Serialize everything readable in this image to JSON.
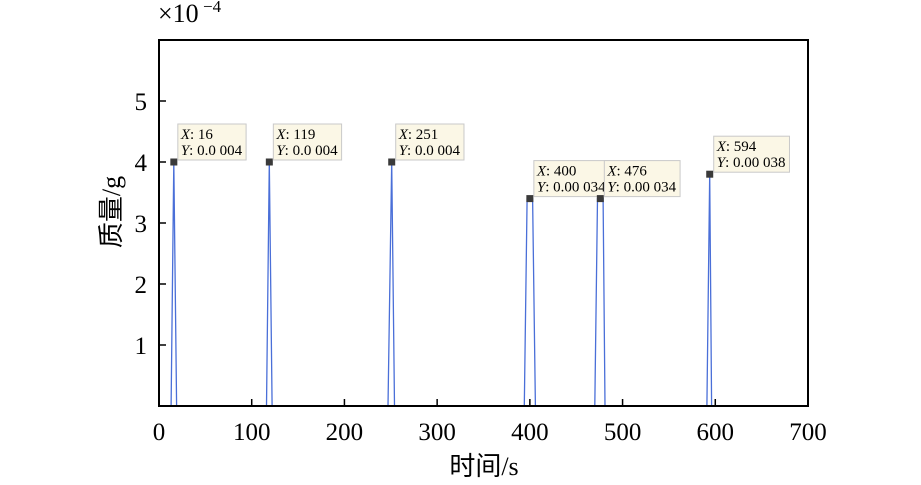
{
  "chart_data": {
    "type": "line",
    "xlabel": "时间/s",
    "ylabel": "质量/g",
    "y_exponent_label": "×10",
    "y_exponent_power": "−4",
    "xlim": [
      0,
      700
    ],
    "ylim": [
      0,
      0.0006
    ],
    "x_ticks": [
      0,
      100,
      200,
      300,
      400,
      500,
      600,
      700
    ],
    "x_tick_labels": [
      "0",
      "100",
      "200",
      "300",
      "400",
      "500",
      "600",
      "700"
    ],
    "y_ticks": [
      0.0001,
      0.0002,
      0.0003,
      0.0004,
      0.0005
    ],
    "y_tick_labels": [
      "1",
      "2",
      "3",
      "4",
      "5"
    ],
    "grid": false,
    "line_color": "#4a6fd8",
    "series": [
      {
        "x": [
          0,
          13,
          16,
          16,
          19,
          22,
          116,
          119,
          119,
          122,
          247,
          251,
          251,
          254,
          394,
          397,
          400,
          403,
          406,
          470,
          473,
          476,
          479,
          481,
          591,
          594,
          594,
          596,
          700
        ],
        "y": [
          0,
          0,
          0.0004,
          0.0004,
          0,
          0,
          0,
          0.0004,
          0.0004,
          0,
          0,
          0.0004,
          0.0004,
          0,
          0,
          0.00034,
          0.00034,
          0.00034,
          0,
          0,
          0.00034,
          0.00034,
          0.00034,
          0,
          0,
          0.00038,
          0.00038,
          0,
          0
        ]
      }
    ],
    "datatips": [
      {
        "x_key": "X",
        "y_key": "Y",
        "x": 16,
        "y": 0.0004,
        "x_text": ": 16",
        "y_text": ": 0.0 004"
      },
      {
        "x_key": "X",
        "y_key": "Y",
        "x": 119,
        "y": 0.0004,
        "x_text": ": 119",
        "y_text": ": 0.0 004"
      },
      {
        "x_key": "X",
        "y_key": "Y",
        "x": 251,
        "y": 0.0004,
        "x_text": ": 251",
        "y_text": ": 0.0 004"
      },
      {
        "x_key": "X",
        "y_key": "Y",
        "x": 400,
        "y": 0.00034,
        "x_text": ": 400",
        "y_text": ": 0.00 034"
      },
      {
        "x_key": "X",
        "y_key": "Y",
        "x": 476,
        "y": 0.00034,
        "x_text": ": 476",
        "y_text": ": 0.00 034"
      },
      {
        "x_key": "X",
        "y_key": "Y",
        "x": 594,
        "y": 0.00038,
        "x_text": ": 594",
        "y_text": ": 0.00 038"
      }
    ]
  }
}
